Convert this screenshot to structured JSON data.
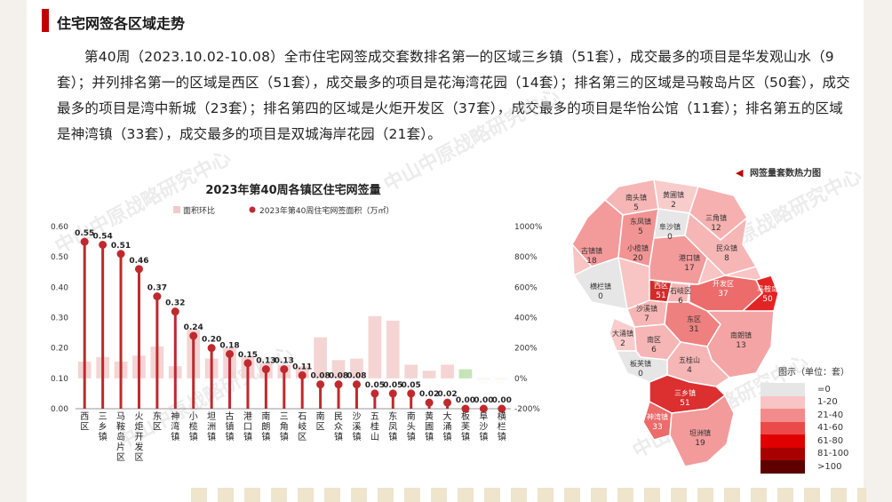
{
  "page": {
    "title": "住宅网签各区域走势"
  },
  "paragraph": "第40周（2023.10.02-10.08）全市住宅网签成交套数排名第一的区域三乡镇（51套），成交最多的项目是华发观山水（9套）；并列排名第一的区域是西区（51套），成交最多的项目是花海湾花园（14套）；排名第三的区域是马鞍岛片区（50套），成交最多的项目是湾中新城（23套）；排名第四的区域是火炬开发区（37套），成交最多的项目是华怡公馆（11套）；排名第五的区域是神湾镇（33套），成交最多的项目是双城海岸花园（21套）。",
  "watermark": "中山中原战略研究中心",
  "chart_data": {
    "type": "bar+scatter",
    "title": "2023年第40周各镇区住宅网签量",
    "legend": [
      "面积环比",
      "2023年第40周住宅网签面积（万㎡）"
    ],
    "colors": {
      "bars": "#c0292d",
      "ratio_bars": "#f2c9c9",
      "ratio_bar_green": "#b7dfa5"
    },
    "categories": [
      "西区",
      "三乡镇",
      "马鞍岛片区",
      "火炬开发区",
      "东区",
      "神湾镇",
      "小榄镇",
      "坦洲镇",
      "古镇镇",
      "港口镇",
      "南朗镇",
      "三角镇",
      "石岐区",
      "南区",
      "民众镇",
      "沙溪镇",
      "五桂山",
      "东凤镇",
      "南头镇",
      "黄圃镇",
      "大涌镇",
      "板芙镇",
      "阜沙镇",
      "横栏镇"
    ],
    "values": [
      0.55,
      0.54,
      0.51,
      0.46,
      0.37,
      0.32,
      0.24,
      0.2,
      0.18,
      0.15,
      0.13,
      0.13,
      0.11,
      0.08,
      0.08,
      0.08,
      0.05,
      0.05,
      0.05,
      0.02,
      0.02,
      0.0,
      0.0,
      0.0
    ],
    "value_labels": [
      "0.55",
      "0.54",
      "0.51",
      "0.46",
      "0.37",
      "0.32",
      "0.24",
      "0.20",
      "0.18",
      "0.15",
      "0.13",
      "0.13",
      "0.11",
      "0.08",
      "0.08",
      "0.08",
      "0.05",
      "0.05",
      "0.05",
      "0.02",
      "0.02",
      "0.00",
      "0.00",
      "0.00"
    ],
    "ratio_pct": [
      110,
      140,
      110,
      150,
      210,
      80,
      320,
      130,
      200,
      140,
      100,
      90,
      80,
      270,
      120,
      130,
      410,
      380,
      90,
      50,
      90,
      60,
      0,
      0
    ],
    "y_left": {
      "ticks": [
        "0.00",
        "0.10",
        "0.20",
        "0.30",
        "0.40",
        "0.50",
        "0.60"
      ],
      "range": [
        0,
        0.6
      ]
    },
    "y_right": {
      "ticks": [
        "-200%",
        "0%",
        "200%",
        "400%",
        "600%",
        "800%",
        "1000%"
      ],
      "range": [
        -200,
        1000
      ]
    }
  },
  "map": {
    "header": "网签量套数热力图",
    "legend_title": "图示（单位：套）",
    "legend": [
      {
        "label": "=0",
        "color": "#e6e6e6"
      },
      {
        "label": "1-20",
        "color": "#f8c4c4"
      },
      {
        "label": "21-40",
        "color": "#f28b8b"
      },
      {
        "label": "41-60",
        "color": "#ec4a4a"
      },
      {
        "label": "61-80",
        "color": "#e00000"
      },
      {
        "label": "81-100",
        "color": "#a80000"
      },
      {
        "label": ">100",
        "color": "#5e0000"
      }
    ],
    "regions": [
      {
        "name": "南头镇",
        "count": "5"
      },
      {
        "name": "黄圃镇",
        "count": "2"
      },
      {
        "name": "东凤镇",
        "count": "5"
      },
      {
        "name": "三角镇",
        "count": "12"
      },
      {
        "name": "阜沙镇",
        "count": "0"
      },
      {
        "name": "古镇镇",
        "count": "18"
      },
      {
        "name": "小榄镇",
        "count": "20"
      },
      {
        "name": "港口镇",
        "count": "17"
      },
      {
        "name": "民众镇",
        "count": "8"
      },
      {
        "name": "横栏镇",
        "count": "0"
      },
      {
        "name": "西区",
        "count": "51"
      },
      {
        "name": "石岐区",
        "count": "6"
      },
      {
        "name": "开发区",
        "count": "37"
      },
      {
        "name": "马鞍岛",
        "count": "50"
      },
      {
        "name": "沙溪镇",
        "count": "7"
      },
      {
        "name": "东区",
        "count": "31"
      },
      {
        "name": "大涌镇",
        "count": "2"
      },
      {
        "name": "南区",
        "count": "6"
      },
      {
        "name": "南朗镇",
        "count": "13"
      },
      {
        "name": "五桂山",
        "count": "4"
      },
      {
        "name": "板芙镇",
        "count": "0"
      },
      {
        "name": "三乡镇",
        "count": "51"
      },
      {
        "name": "神湾镇",
        "count": "33"
      },
      {
        "name": "坦洲镇",
        "count": "19"
      }
    ]
  }
}
